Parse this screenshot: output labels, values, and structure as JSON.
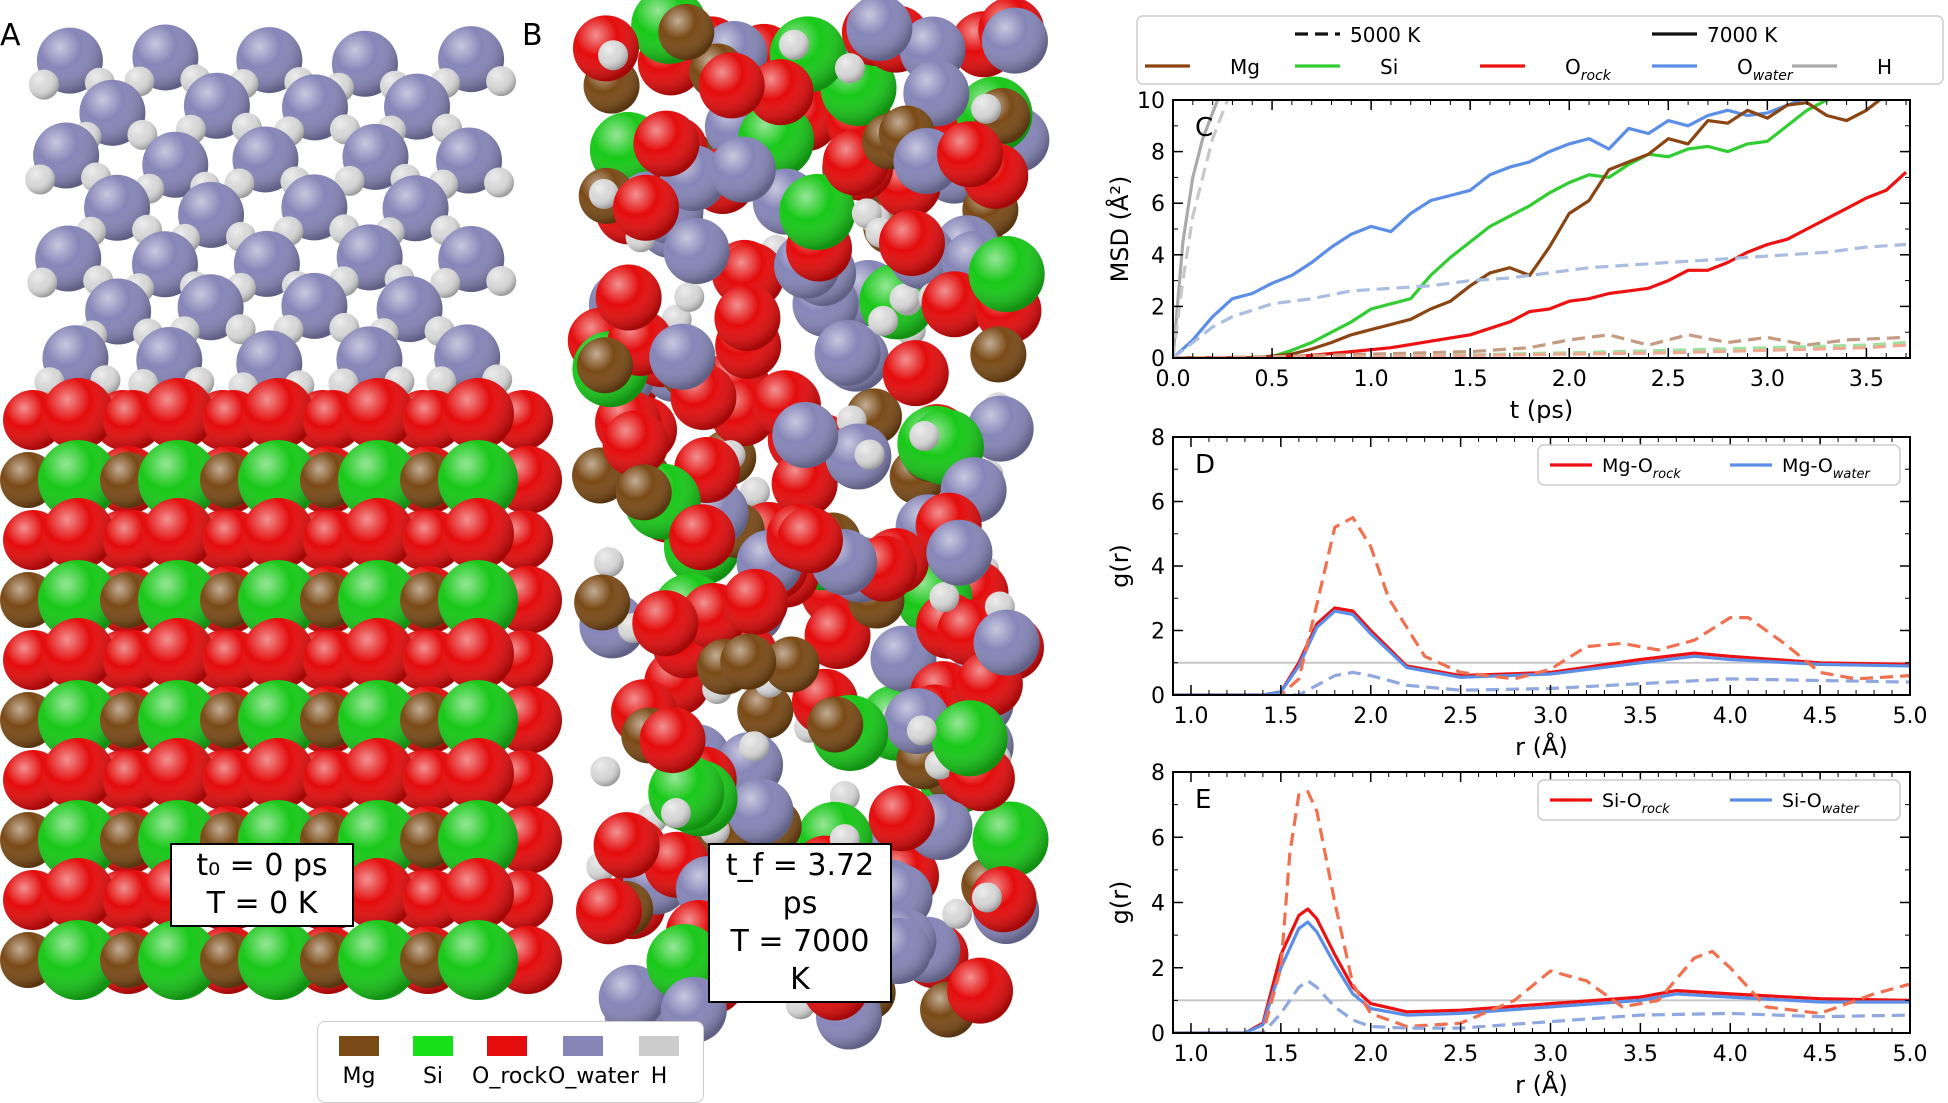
{
  "panels": {
    "A": {
      "label": "A",
      "info_line1": "t₀ = 0 ps",
      "info_line2": "T = 0 K"
    },
    "B": {
      "label": "B",
      "info_line1": "t_f = 3.72 ps",
      "info_line2": "T = 7000 K"
    }
  },
  "atom_colors": {
    "Mg": "#7a4a16",
    "Si": "#18c818",
    "O_rock": "#e40c0c",
    "O_water": "#8585b8",
    "H": "#d8d8d8"
  },
  "atom_legend": [
    {
      "label": "Mg",
      "color": "#7a4a16"
    },
    {
      "label": "Si",
      "color": "#18c818"
    },
    {
      "label": "O_rock",
      "color": "#e40c0c"
    },
    {
      "label": "O_water",
      "color": "#8585b8"
    },
    {
      "label": "H",
      "color": "#cccccc"
    }
  ],
  "chart_data": [
    {
      "panel": "C",
      "type": "line",
      "xlabel": "t (ps)",
      "ylabel": "MSD (Å²)",
      "xlim": [
        0,
        3.72
      ],
      "ylim": [
        0,
        10
      ],
      "xticks": [
        "0.0",
        "0.5",
        "1.0",
        "1.5",
        "2.0",
        "2.5",
        "3.0",
        "3.5"
      ],
      "yticks": [
        "0",
        "2",
        "4",
        "6",
        "8",
        "10"
      ],
      "legend_linestyles": [
        {
          "label": "5000 K",
          "style": "dashed"
        },
        {
          "label": "7000 K",
          "style": "solid"
        }
      ],
      "legend_species": [
        {
          "label": "Mg",
          "color": "#8b4513"
        },
        {
          "label": "Si",
          "color": "#32cd32"
        },
        {
          "label": "O_rock",
          "color": "#ee1111"
        },
        {
          "label": "O_water",
          "color": "#5b8ee6"
        },
        {
          "label": "H",
          "color": "#aaaaaa"
        }
      ],
      "series": [
        {
          "name": "H",
          "temp": "7000 K",
          "color": "#aaaaaa",
          "x": [
            0,
            0.05,
            0.1,
            0.15,
            0.2,
            0.25
          ],
          "y": [
            0,
            4.5,
            7,
            8.5,
            9.5,
            10.5
          ]
        },
        {
          "name": "H",
          "temp": "5000 K",
          "color": "#c8c8c8",
          "x": [
            0,
            0.05,
            0.1,
            0.15,
            0.2,
            0.25,
            0.3
          ],
          "y": [
            0,
            3,
            5.5,
            7,
            8.5,
            9.5,
            10.5
          ]
        },
        {
          "name": "O_water",
          "temp": "7000 K",
          "color": "#5b8ee6",
          "x": [
            0,
            0.1,
            0.2,
            0.3,
            0.4,
            0.5,
            0.6,
            0.7,
            0.8,
            0.9,
            1.0,
            1.1,
            1.2,
            1.3,
            1.4,
            1.5,
            1.6,
            1.7,
            1.8,
            1.9,
            2.0,
            2.1,
            2.2,
            2.3,
            2.4,
            2.5,
            2.6,
            2.7,
            2.8,
            2.9,
            3.0,
            3.1,
            3.2,
            3.3,
            3.4,
            3.5,
            3.6,
            3.7
          ],
          "y": [
            0,
            0.7,
            1.6,
            2.3,
            2.5,
            2.9,
            3.2,
            3.7,
            4.3,
            4.8,
            5.1,
            4.9,
            5.6,
            6.1,
            6.3,
            6.5,
            7.1,
            7.4,
            7.6,
            8.0,
            8.3,
            8.5,
            8.1,
            8.9,
            8.7,
            9.2,
            9.0,
            9.4,
            9.6,
            9.4,
            9.5,
            9.8,
            10.1,
            10.4,
            10.6,
            10.8,
            11,
            11.2
          ]
        },
        {
          "name": "Si",
          "temp": "7000 K",
          "color": "#32cd32",
          "x": [
            0,
            0.3,
            0.5,
            0.6,
            0.7,
            0.8,
            0.9,
            1.0,
            1.1,
            1.2,
            1.3,
            1.4,
            1.5,
            1.6,
            1.7,
            1.8,
            1.9,
            2.0,
            2.1,
            2.2,
            2.3,
            2.4,
            2.5,
            2.6,
            2.7,
            2.8,
            2.9,
            3.0,
            3.1,
            3.2,
            3.3,
            3.4,
            3.5,
            3.6,
            3.7
          ],
          "y": [
            0,
            0,
            0.05,
            0.3,
            0.6,
            1.0,
            1.4,
            1.9,
            2.1,
            2.3,
            3.2,
            3.9,
            4.5,
            5.1,
            5.5,
            5.9,
            6.4,
            6.8,
            7.1,
            7.0,
            7.5,
            7.9,
            7.8,
            8.1,
            8.2,
            8.0,
            8.3,
            8.4,
            9.0,
            9.6,
            10.0,
            10.3,
            10.6,
            10.9,
            11.2
          ]
        },
        {
          "name": "Mg",
          "temp": "7000 K",
          "color": "#8b4513",
          "x": [
            0,
            0.4,
            0.6,
            0.7,
            0.8,
            0.9,
            1.0,
            1.1,
            1.2,
            1.3,
            1.4,
            1.5,
            1.6,
            1.7,
            1.8,
            1.9,
            2.0,
            2.1,
            2.2,
            2.3,
            2.4,
            2.5,
            2.6,
            2.7,
            2.8,
            2.9,
            3.0,
            3.1,
            3.2,
            3.3,
            3.4,
            3.5,
            3.6,
            3.7
          ],
          "y": [
            0,
            0,
            0.15,
            0.35,
            0.6,
            0.9,
            1.1,
            1.3,
            1.5,
            1.9,
            2.2,
            2.8,
            3.3,
            3.5,
            3.2,
            4.3,
            5.6,
            6.1,
            7.3,
            7.6,
            7.9,
            8.5,
            8.3,
            9.2,
            9.1,
            9.6,
            9.3,
            9.8,
            9.9,
            9.4,
            9.2,
            9.6,
            10.2,
            10.4
          ]
        },
        {
          "name": "O_rock",
          "temp": "7000 K",
          "color": "#ee1111",
          "x": [
            0,
            0.5,
            0.7,
            0.9,
            1.1,
            1.3,
            1.5,
            1.7,
            1.8,
            1.9,
            2.0,
            2.1,
            2.2,
            2.3,
            2.4,
            2.5,
            2.6,
            2.7,
            2.8,
            2.9,
            3.0,
            3.1,
            3.2,
            3.3,
            3.4,
            3.5,
            3.6,
            3.7
          ],
          "y": [
            0,
            0,
            0.1,
            0.25,
            0.4,
            0.65,
            0.9,
            1.4,
            1.8,
            1.9,
            2.2,
            2.3,
            2.5,
            2.6,
            2.7,
            3.0,
            3.4,
            3.4,
            3.7,
            4.1,
            4.4,
            4.6,
            5.0,
            5.4,
            5.8,
            6.2,
            6.5,
            7.2
          ]
        },
        {
          "name": "O_water",
          "temp": "5000 K",
          "color": "#a9bde0",
          "x": [
            0,
            0.1,
            0.2,
            0.3,
            0.5,
            0.7,
            0.9,
            1.1,
            1.3,
            1.5,
            1.7,
            1.9,
            2.1,
            2.3,
            2.5,
            2.7,
            2.9,
            3.1,
            3.3,
            3.5,
            3.7
          ],
          "y": [
            0,
            0.6,
            1.2,
            1.6,
            2.1,
            2.3,
            2.6,
            2.7,
            2.8,
            3.0,
            3.1,
            3.3,
            3.5,
            3.6,
            3.7,
            3.8,
            3.9,
            4.0,
            4.1,
            4.3,
            4.4
          ]
        },
        {
          "name": "Mg",
          "temp": "5000 K",
          "color": "#c49a80",
          "x": [
            0,
            0.5,
            1.0,
            1.5,
            1.8,
            2.0,
            2.2,
            2.4,
            2.6,
            2.8,
            3.0,
            3.2,
            3.4,
            3.7
          ],
          "y": [
            0,
            0.05,
            0.15,
            0.25,
            0.4,
            0.7,
            0.9,
            0.5,
            0.9,
            0.6,
            0.8,
            0.5,
            0.7,
            0.8
          ]
        },
        {
          "name": "Si",
          "temp": "5000 K",
          "color": "#a0e0a0",
          "x": [
            0,
            1.0,
            2.0,
            2.5,
            3.0,
            3.5,
            3.7
          ],
          "y": [
            0,
            0.05,
            0.2,
            0.3,
            0.4,
            0.5,
            0.6
          ]
        },
        {
          "name": "O_rock",
          "temp": "5000 K",
          "color": "#f0a890",
          "x": [
            0,
            1.0,
            2.0,
            2.5,
            3.0,
            3.5,
            3.7
          ],
          "y": [
            0,
            0.05,
            0.15,
            0.2,
            0.3,
            0.4,
            0.5
          ]
        }
      ]
    },
    {
      "panel": "D",
      "type": "line",
      "xlabel": "r (Å)",
      "ylabel": "g(r)",
      "xlim": [
        0.9,
        5.0
      ],
      "ylim": [
        0,
        8
      ],
      "xticks": [
        "1.0",
        "1.5",
        "2.0",
        "2.5",
        "3.0",
        "3.5",
        "4.0",
        "4.5",
        "5.0"
      ],
      "yticks": [
        "0",
        "2",
        "4",
        "6",
        "8"
      ],
      "reference_line": 1,
      "legend": [
        {
          "label": "Mg-O_rock",
          "color": "#ee1111"
        },
        {
          "label": "Mg-O_water",
          "color": "#5b8ee6"
        }
      ],
      "series": [
        {
          "name": "Mg-O_rock",
          "temp": "7000 K",
          "color": "#ee1111",
          "x": [
            0.9,
            1.4,
            1.5,
            1.6,
            1.7,
            1.8,
            1.9,
            2.0,
            2.2,
            2.5,
            3.0,
            3.5,
            3.8,
            4.0,
            4.5,
            5.0
          ],
          "y": [
            0,
            0,
            0.1,
            1.0,
            2.2,
            2.7,
            2.6,
            2.0,
            0.9,
            0.6,
            0.7,
            1.1,
            1.3,
            1.2,
            1.0,
            0.95
          ]
        },
        {
          "name": "Mg-O_water",
          "temp": "7000 K",
          "color": "#5b8ee6",
          "x": [
            0.9,
            1.4,
            1.5,
            1.6,
            1.7,
            1.8,
            1.9,
            2.0,
            2.2,
            2.5,
            3.0,
            3.5,
            3.8,
            4.0,
            4.5,
            5.0
          ],
          "y": [
            0,
            0,
            0.1,
            0.9,
            2.1,
            2.6,
            2.5,
            1.9,
            0.85,
            0.55,
            0.65,
            1.0,
            1.2,
            1.1,
            0.95,
            0.9
          ]
        },
        {
          "name": "Mg-O_rock",
          "temp": "5000 K",
          "color": "#f07050",
          "x": [
            0.9,
            1.5,
            1.6,
            1.7,
            1.8,
            1.9,
            2.0,
            2.1,
            2.3,
            2.5,
            2.8,
            3.0,
            3.2,
            3.4,
            3.6,
            3.8,
            4.0,
            4.1,
            4.3,
            4.5,
            4.7,
            5.0
          ],
          "y": [
            0,
            0,
            0.5,
            2.8,
            5.2,
            5.5,
            4.6,
            3.0,
            1.2,
            0.7,
            0.5,
            0.8,
            1.5,
            1.6,
            1.4,
            1.7,
            2.4,
            2.4,
            1.6,
            0.7,
            0.5,
            0.6
          ]
        },
        {
          "name": "Mg-O_water",
          "temp": "5000 K",
          "color": "#90a8e0",
          "x": [
            0.9,
            1.6,
            1.7,
            1.8,
            1.9,
            2.0,
            2.2,
            2.5,
            3.0,
            3.5,
            4.0,
            4.5,
            5.0
          ],
          "y": [
            0,
            0,
            0.3,
            0.6,
            0.7,
            0.6,
            0.3,
            0.15,
            0.2,
            0.35,
            0.5,
            0.45,
            0.4
          ]
        }
      ]
    },
    {
      "panel": "E",
      "type": "line",
      "xlabel": "r (Å)",
      "ylabel": "g(r)",
      "xlim": [
        0.9,
        5.0
      ],
      "ylim": [
        0,
        8
      ],
      "xticks": [
        "1.0",
        "1.5",
        "2.0",
        "2.5",
        "3.0",
        "3.5",
        "4.0",
        "4.5",
        "5.0"
      ],
      "yticks": [
        "0",
        "2",
        "4",
        "6",
        "8"
      ],
      "reference_line": 1,
      "legend": [
        {
          "label": "Si-O_rock",
          "color": "#ee1111"
        },
        {
          "label": "Si-O_water",
          "color": "#5b8ee6"
        }
      ],
      "series": [
        {
          "name": "Si-O_rock",
          "temp": "7000 K",
          "color": "#ee1111",
          "x": [
            0.9,
            1.3,
            1.4,
            1.5,
            1.6,
            1.65,
            1.7,
            1.8,
            1.9,
            2.0,
            2.2,
            2.5,
            3.0,
            3.5,
            3.7,
            4.0,
            4.5,
            5.0
          ],
          "y": [
            0,
            0,
            0.3,
            2.4,
            3.6,
            3.8,
            3.5,
            2.4,
            1.4,
            0.9,
            0.65,
            0.7,
            0.9,
            1.1,
            1.3,
            1.2,
            1.05,
            1.0
          ]
        },
        {
          "name": "Si-O_water",
          "temp": "7000 K",
          "color": "#5b8ee6",
          "x": [
            0.9,
            1.3,
            1.4,
            1.5,
            1.6,
            1.65,
            1.7,
            1.8,
            1.9,
            2.0,
            2.2,
            2.5,
            3.0,
            3.5,
            3.7,
            4.0,
            4.5,
            5.0
          ],
          "y": [
            0,
            0,
            0.25,
            2.0,
            3.2,
            3.4,
            3.1,
            2.1,
            1.2,
            0.75,
            0.55,
            0.6,
            0.8,
            1.0,
            1.2,
            1.1,
            0.95,
            0.95
          ]
        },
        {
          "name": "Si-O_rock",
          "temp": "5000 K",
          "color": "#f07050",
          "x": [
            0.9,
            1.4,
            1.5,
            1.55,
            1.6,
            1.65,
            1.7,
            1.8,
            1.9,
            2.0,
            2.2,
            2.5,
            2.8,
            3.0,
            3.2,
            3.4,
            3.6,
            3.8,
            3.9,
            4.0,
            4.2,
            4.5,
            4.8,
            5.0
          ],
          "y": [
            0,
            0,
            2.0,
            5.5,
            7.3,
            7.4,
            6.8,
            4.0,
            1.5,
            0.6,
            0.2,
            0.3,
            1.0,
            1.9,
            1.6,
            0.8,
            1.0,
            2.3,
            2.5,
            2.0,
            0.8,
            0.6,
            1.2,
            1.5
          ]
        },
        {
          "name": "Si-O_water",
          "temp": "5000 K",
          "color": "#90a8e0",
          "x": [
            0.9,
            1.4,
            1.5,
            1.6,
            1.65,
            1.7,
            1.8,
            1.9,
            2.0,
            2.2,
            2.5,
            3.0,
            3.5,
            4.0,
            4.5,
            5.0
          ],
          "y": [
            0,
            0,
            0.6,
            1.4,
            1.6,
            1.4,
            0.8,
            0.4,
            0.2,
            0.15,
            0.15,
            0.35,
            0.55,
            0.6,
            0.5,
            0.55
          ]
        }
      ]
    }
  ]
}
